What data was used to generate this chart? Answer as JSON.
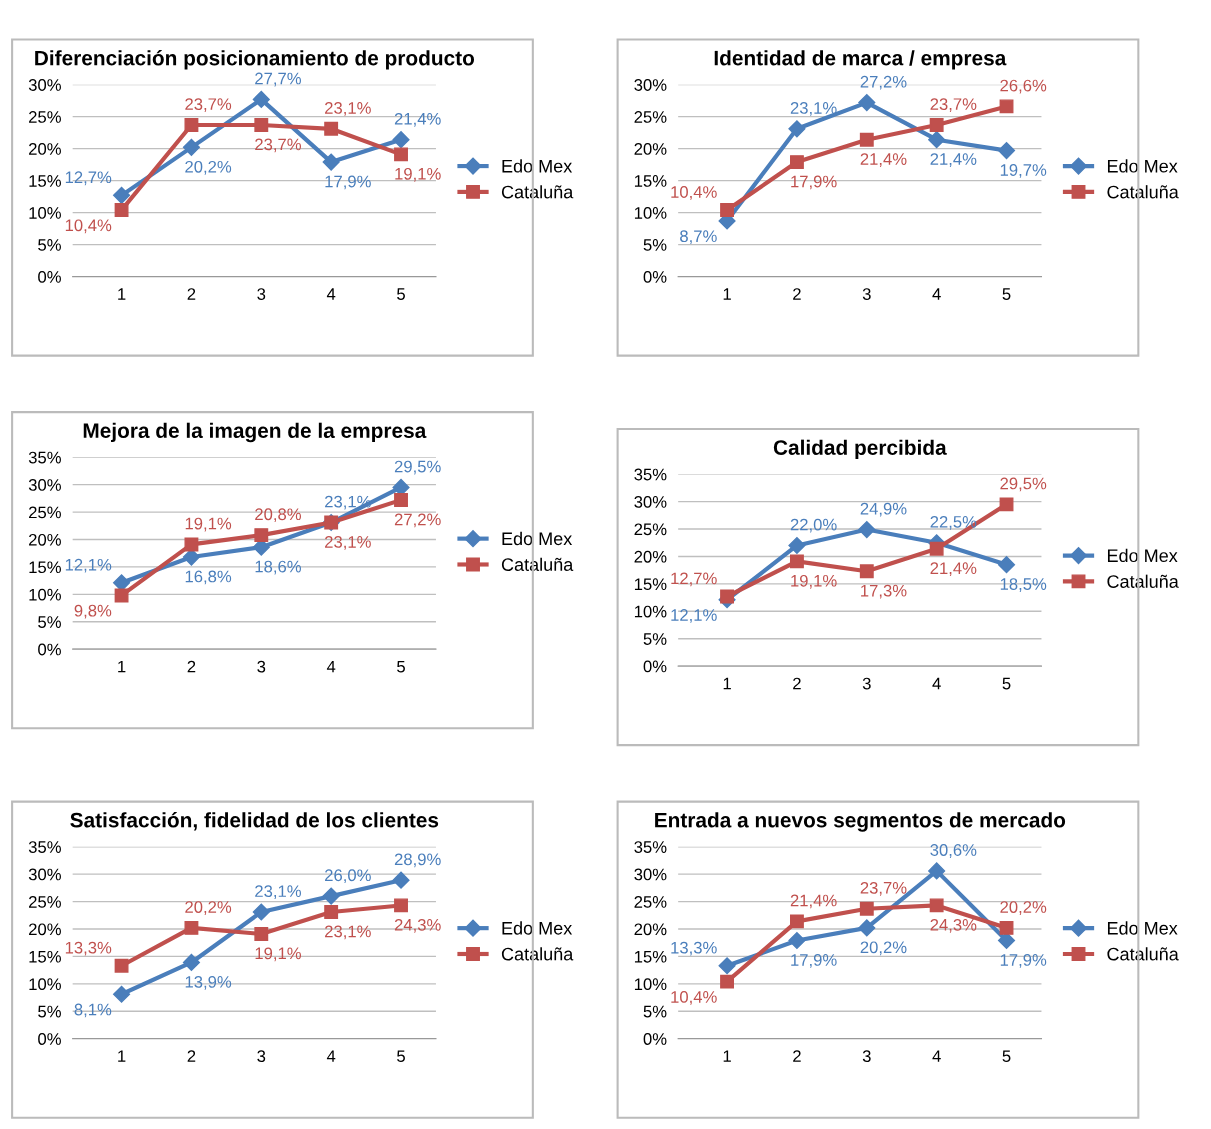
{
  "chart_data": [
    {
      "type": "line",
      "title": "Diferenciación posicionamiento de producto",
      "categories": [
        "1",
        "2",
        "3",
        "4",
        "5"
      ],
      "ylim": [
        0,
        30
      ],
      "yticks": [
        {
          "value": 0,
          "label": "0%"
        },
        {
          "value": 5,
          "label": "5%"
        },
        {
          "value": 10,
          "label": "10%"
        },
        {
          "value": 15,
          "label": "15%"
        },
        {
          "value": 20,
          "label": "20%"
        },
        {
          "value": 25,
          "label": "25%"
        },
        {
          "value": 30,
          "label": "30%"
        }
      ],
      "grid": "y",
      "legend": "right",
      "series": [
        {
          "name": "Edo Mex",
          "color": "#4a7ebb",
          "marker": "diamond",
          "values": [
            12.7,
            20.2,
            27.7,
            17.9,
            21.4
          ],
          "value_labels": [
            "12,7%",
            "20,2%",
            "27,7%",
            "17,9%",
            "21,4%"
          ]
        },
        {
          "name": "Cataluña",
          "color": "#c0504d",
          "marker": "square",
          "values": [
            10.4,
            23.7,
            23.7,
            23.1,
            19.1
          ],
          "value_labels": [
            "10,4%",
            "23,7%",
            "23,7%",
            "23,1%",
            "19,1%"
          ]
        }
      ]
    },
    {
      "type": "line",
      "title": "Identidad de marca / empresa",
      "categories": [
        "1",
        "2",
        "3",
        "4",
        "5"
      ],
      "ylim": [
        0,
        30
      ],
      "yticks": [
        {
          "value": 0,
          "label": "0%"
        },
        {
          "value": 5,
          "label": "5%"
        },
        {
          "value": 10,
          "label": "10%"
        },
        {
          "value": 15,
          "label": "15%"
        },
        {
          "value": 20,
          "label": "20%"
        },
        {
          "value": 25,
          "label": "25%"
        },
        {
          "value": 30,
          "label": "30%"
        }
      ],
      "grid": "y",
      "legend": "right",
      "series": [
        {
          "name": "Edo Mex",
          "color": "#4a7ebb",
          "marker": "diamond",
          "values": [
            8.7,
            23.1,
            27.2,
            21.4,
            19.7
          ],
          "value_labels": [
            "8,7%",
            "23,1%",
            "27,2%",
            "21,4%",
            "19,7%"
          ]
        },
        {
          "name": "Cataluña",
          "color": "#c0504d",
          "marker": "square",
          "values": [
            10.4,
            17.9,
            21.4,
            23.7,
            26.6
          ],
          "value_labels": [
            "10,4%",
            "17,9%",
            "21,4%",
            "23,7%",
            "26,6%"
          ]
        }
      ]
    },
    {
      "type": "line",
      "title": "Mejora de la imagen de la empresa",
      "categories": [
        "1",
        "2",
        "3",
        "4",
        "5"
      ],
      "ylim": [
        0,
        35
      ],
      "yticks": [
        {
          "value": 0,
          "label": "0%"
        },
        {
          "value": 5,
          "label": "5%"
        },
        {
          "value": 10,
          "label": "10%"
        },
        {
          "value": 15,
          "label": "15%"
        },
        {
          "value": 20,
          "label": "20%"
        },
        {
          "value": 25,
          "label": "25%"
        },
        {
          "value": 30,
          "label": "30%"
        },
        {
          "value": 35,
          "label": "35%"
        }
      ],
      "grid": "y",
      "legend": "right",
      "series": [
        {
          "name": "Edo Mex",
          "color": "#4a7ebb",
          "marker": "diamond",
          "values": [
            12.1,
            16.8,
            18.6,
            23.1,
            29.5
          ],
          "value_labels": [
            "12,1%",
            "16,8%",
            "18,6%",
            "23,1%",
            "29,5%"
          ]
        },
        {
          "name": "Cataluña",
          "color": "#c0504d",
          "marker": "square",
          "values": [
            9.8,
            19.1,
            20.8,
            23.1,
            27.2
          ],
          "value_labels": [
            "9,8%",
            "19,1%",
            "20,8%",
            "23,1%",
            "27,2%"
          ]
        }
      ]
    },
    {
      "type": "line",
      "title": "Calidad percibida",
      "categories": [
        "1",
        "2",
        "3",
        "4",
        "5"
      ],
      "ylim": [
        0,
        35
      ],
      "yticks": [
        {
          "value": 0,
          "label": "0%"
        },
        {
          "value": 5,
          "label": "5%"
        },
        {
          "value": 10,
          "label": "10%"
        },
        {
          "value": 15,
          "label": "15%"
        },
        {
          "value": 20,
          "label": "20%"
        },
        {
          "value": 25,
          "label": "25%"
        },
        {
          "value": 30,
          "label": "30%"
        },
        {
          "value": 35,
          "label": "35%"
        }
      ],
      "grid": "y",
      "legend": "right",
      "series": [
        {
          "name": "Edo Mex",
          "color": "#4a7ebb",
          "marker": "diamond",
          "values": [
            12.1,
            22.0,
            24.9,
            22.5,
            18.5
          ],
          "value_labels": [
            "12,1%",
            "22,0%",
            "24,9%",
            "22,5%",
            "18,5%"
          ]
        },
        {
          "name": "Cataluña",
          "color": "#c0504d",
          "marker": "square",
          "values": [
            12.7,
            19.1,
            17.3,
            21.4,
            29.5
          ],
          "value_labels": [
            "12,7%",
            "19,1%",
            "17,3%",
            "21,4%",
            "29,5%"
          ]
        }
      ]
    },
    {
      "type": "line",
      "title": "Satisfacción, fidelidad de los clientes",
      "categories": [
        "1",
        "2",
        "3",
        "4",
        "5"
      ],
      "ylim": [
        0,
        35
      ],
      "yticks": [
        {
          "value": 0,
          "label": "0%"
        },
        {
          "value": 5,
          "label": "5%"
        },
        {
          "value": 10,
          "label": "10%"
        },
        {
          "value": 15,
          "label": "15%"
        },
        {
          "value": 20,
          "label": "20%"
        },
        {
          "value": 25,
          "label": "25%"
        },
        {
          "value": 30,
          "label": "30%"
        },
        {
          "value": 35,
          "label": "35%"
        }
      ],
      "grid": "y",
      "legend": "right",
      "series": [
        {
          "name": "Edo Mex",
          "color": "#4a7ebb",
          "marker": "diamond",
          "values": [
            8.1,
            13.9,
            23.1,
            26.0,
            28.9
          ],
          "value_labels": [
            "8,1%",
            "13,9%",
            "23,1%",
            "26,0%",
            "28,9%"
          ]
        },
        {
          "name": "Cataluña",
          "color": "#c0504d",
          "marker": "square",
          "values": [
            13.3,
            20.2,
            19.1,
            23.1,
            24.3
          ],
          "value_labels": [
            "13,3%",
            "20,2%",
            "19,1%",
            "23,1%",
            "24,3%"
          ]
        }
      ]
    },
    {
      "type": "line",
      "title": "Entrada a nuevos segmentos de mercado",
      "categories": [
        "1",
        "2",
        "3",
        "4",
        "5"
      ],
      "ylim": [
        0,
        35
      ],
      "yticks": [
        {
          "value": 0,
          "label": "0%"
        },
        {
          "value": 5,
          "label": "5%"
        },
        {
          "value": 10,
          "label": "10%"
        },
        {
          "value": 15,
          "label": "15%"
        },
        {
          "value": 20,
          "label": "20%"
        },
        {
          "value": 25,
          "label": "25%"
        },
        {
          "value": 30,
          "label": "30%"
        },
        {
          "value": 35,
          "label": "35%"
        }
      ],
      "grid": "y",
      "legend": "right",
      "series": [
        {
          "name": "Edo Mex",
          "color": "#4a7ebb",
          "marker": "diamond",
          "values": [
            13.3,
            17.9,
            20.2,
            30.6,
            17.9
          ],
          "value_labels": [
            "13,3%",
            "17,9%",
            "20,2%",
            "30,6%",
            "17,9%"
          ]
        },
        {
          "name": "Cataluña",
          "color": "#c0504d",
          "marker": "square",
          "values": [
            10.4,
            21.4,
            23.7,
            24.3,
            20.2
          ],
          "value_labels": [
            "10,4%",
            "21,4%",
            "23,7%",
            "24,3%",
            "20,2%"
          ]
        }
      ]
    }
  ]
}
